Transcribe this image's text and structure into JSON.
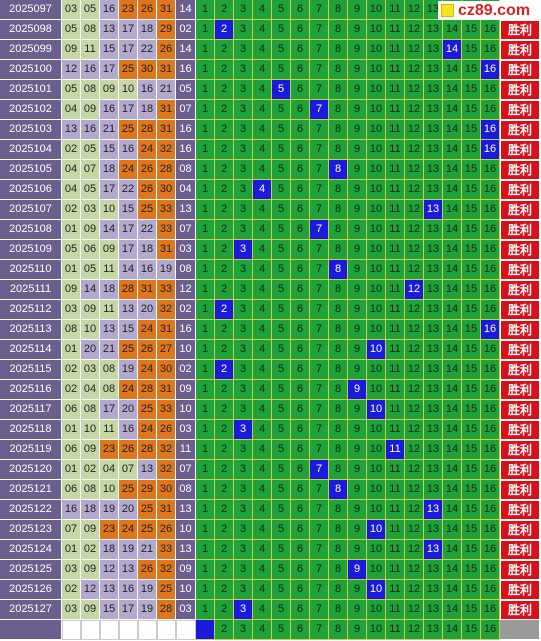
{
  "logo": {
    "text": "cz89.com"
  },
  "result_label": "胜利",
  "rows": [
    {
      "period": "2025097",
      "nums": [
        "03",
        "05",
        "16",
        "23",
        "26",
        "31"
      ],
      "blue": "14",
      "hit": null
    },
    {
      "period": "2025098",
      "nums": [
        "05",
        "08",
        "13",
        "17",
        "18",
        "29"
      ],
      "blue": "02",
      "hit": 2
    },
    {
      "period": "2025099",
      "nums": [
        "09",
        "11",
        "15",
        "17",
        "22",
        "26"
      ],
      "blue": "14",
      "hit": 14
    },
    {
      "period": "2025100",
      "nums": [
        "12",
        "16",
        "17",
        "25",
        "30",
        "31"
      ],
      "blue": "16",
      "hit": 16
    },
    {
      "period": "2025101",
      "nums": [
        "05",
        "08",
        "09",
        "10",
        "16",
        "21"
      ],
      "blue": "05",
      "hit": 5
    },
    {
      "period": "2025102",
      "nums": [
        "04",
        "09",
        "16",
        "17",
        "18",
        "31"
      ],
      "blue": "07",
      "hit": 7
    },
    {
      "period": "2025103",
      "nums": [
        "13",
        "16",
        "21",
        "25",
        "28",
        "31"
      ],
      "blue": "16",
      "hit": 16
    },
    {
      "period": "2025104",
      "nums": [
        "02",
        "05",
        "15",
        "16",
        "24",
        "32"
      ],
      "blue": "16",
      "hit": 16
    },
    {
      "period": "2025105",
      "nums": [
        "04",
        "07",
        "18",
        "24",
        "26",
        "28"
      ],
      "blue": "08",
      "hit": 8
    },
    {
      "period": "2025106",
      "nums": [
        "04",
        "05",
        "17",
        "22",
        "26",
        "30"
      ],
      "blue": "04",
      "hit": 4
    },
    {
      "period": "2025107",
      "nums": [
        "02",
        "03",
        "10",
        "15",
        "25",
        "33"
      ],
      "blue": "13",
      "hit": 13
    },
    {
      "period": "2025108",
      "nums": [
        "01",
        "09",
        "14",
        "17",
        "22",
        "33"
      ],
      "blue": "07",
      "hit": 7
    },
    {
      "period": "2025109",
      "nums": [
        "05",
        "06",
        "09",
        "17",
        "18",
        "31"
      ],
      "blue": "03",
      "hit": 3
    },
    {
      "period": "2025110",
      "nums": [
        "01",
        "05",
        "11",
        "14",
        "16",
        "19"
      ],
      "blue": "08",
      "hit": 8
    },
    {
      "period": "2025111",
      "nums": [
        "09",
        "14",
        "18",
        "28",
        "31",
        "33"
      ],
      "blue": "12",
      "hit": 12
    },
    {
      "period": "2025112",
      "nums": [
        "03",
        "09",
        "11",
        "13",
        "20",
        "32"
      ],
      "blue": "02",
      "hit": 2
    },
    {
      "period": "2025113",
      "nums": [
        "08",
        "10",
        "13",
        "15",
        "24",
        "31"
      ],
      "blue": "16",
      "hit": 16
    },
    {
      "period": "2025114",
      "nums": [
        "01",
        "20",
        "21",
        "25",
        "26",
        "27"
      ],
      "blue": "10",
      "hit": 10
    },
    {
      "period": "2025115",
      "nums": [
        "02",
        "03",
        "08",
        "19",
        "24",
        "30"
      ],
      "blue": "02",
      "hit": 2
    },
    {
      "period": "2025116",
      "nums": [
        "02",
        "04",
        "08",
        "24",
        "28",
        "31"
      ],
      "blue": "09",
      "hit": 9
    },
    {
      "period": "2025117",
      "nums": [
        "06",
        "08",
        "17",
        "20",
        "25",
        "33"
      ],
      "blue": "10",
      "hit": 10
    },
    {
      "period": "2025118",
      "nums": [
        "01",
        "10",
        "11",
        "16",
        "24",
        "26"
      ],
      "blue": "03",
      "hit": 3
    },
    {
      "period": "2025119",
      "nums": [
        "06",
        "09",
        "23",
        "26",
        "28",
        "32"
      ],
      "blue": "11",
      "hit": 11
    },
    {
      "period": "2025120",
      "nums": [
        "01",
        "02",
        "04",
        "07",
        "13",
        "32"
      ],
      "blue": "07",
      "hit": 7
    },
    {
      "period": "2025121",
      "nums": [
        "06",
        "08",
        "10",
        "25",
        "29",
        "30"
      ],
      "blue": "08",
      "hit": 8
    },
    {
      "period": "2025122",
      "nums": [
        "16",
        "18",
        "19",
        "20",
        "25",
        "31"
      ],
      "blue": "13",
      "hit": 13
    },
    {
      "period": "2025123",
      "nums": [
        "07",
        "09",
        "23",
        "24",
        "25",
        "26"
      ],
      "blue": "10",
      "hit": 10
    },
    {
      "period": "2025124",
      "nums": [
        "01",
        "02",
        "18",
        "19",
        "21",
        "33"
      ],
      "blue": "13",
      "hit": 13
    },
    {
      "period": "2025125",
      "nums": [
        "03",
        "09",
        "12",
        "13",
        "26",
        "32"
      ],
      "blue": "09",
      "hit": 9
    },
    {
      "period": "2025126",
      "nums": [
        "02",
        "12",
        "13",
        "16",
        "19",
        "25"
      ],
      "blue": "10",
      "hit": 10
    },
    {
      "period": "2025127",
      "nums": [
        "03",
        "09",
        "15",
        "17",
        "19",
        "28"
      ],
      "blue": "03",
      "hit": 3
    }
  ],
  "predict": {
    "hit": 1
  },
  "colors": {
    "period_bg": "#6b5f8f",
    "range1": "#c5d7a4",
    "range2": "#b3a9cf",
    "range3": "#e0761c",
    "alt": "#ffffff",
    "blue_bg": "#1a1adb",
    "green_bg": "#1fa23a",
    "result_bg": "#d8101a",
    "gray": "#9a9a9a"
  }
}
